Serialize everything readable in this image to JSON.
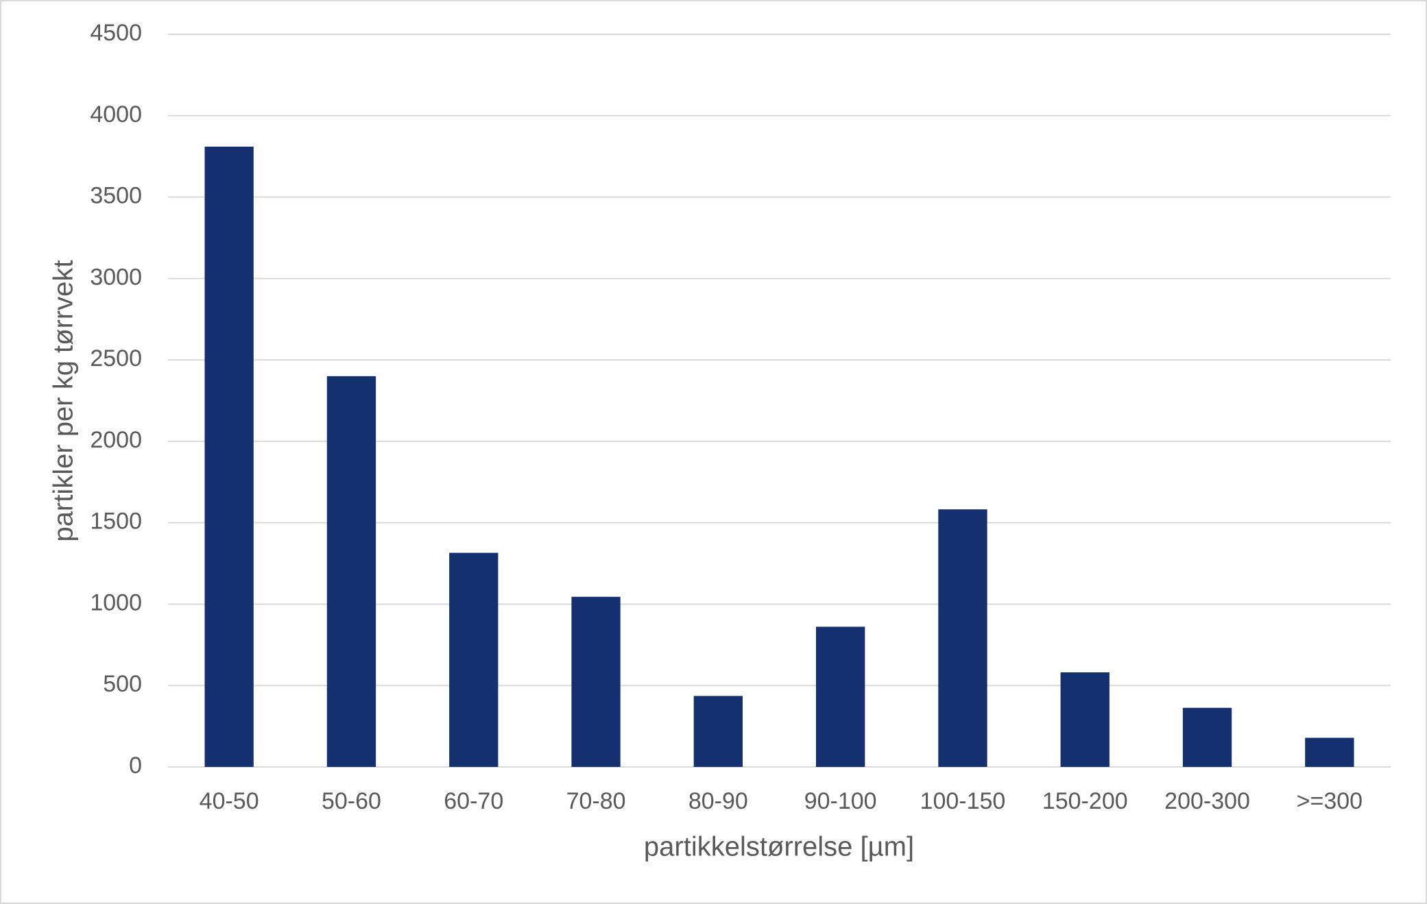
{
  "chart_data": {
    "type": "bar",
    "x_label": "partikkelstørrelse [µm]",
    "y_label": "partikler per kg tørrvekt",
    "categories": [
      "40-50",
      "50-60",
      "60-70",
      "70-80",
      "80-90",
      "90-100",
      "100-150",
      "150-200",
      "200-300",
      ">=300"
    ],
    "values": [
      3810,
      2400,
      1315,
      1045,
      436,
      861,
      1582,
      581,
      363,
      179
    ],
    "color": "#14306f",
    "ylim": [
      0,
      4500
    ],
    "yticks": [
      0,
      500,
      1000,
      1500,
      2000,
      2500,
      3000,
      3500,
      4000,
      4500
    ],
    "grid": true
  }
}
